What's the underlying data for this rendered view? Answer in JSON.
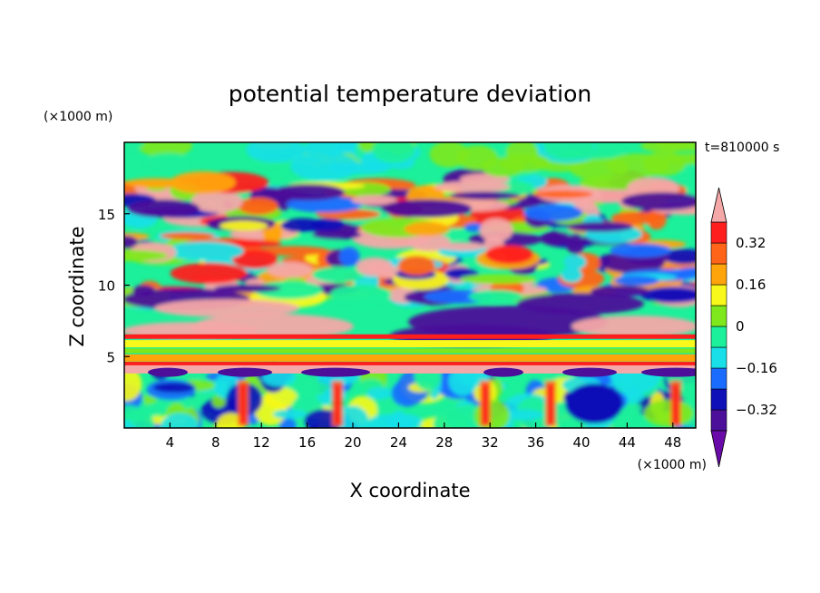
{
  "chart_data": {
    "type": "heatmap",
    "title": "potential temperature deviation",
    "xlabel": "X coordinate",
    "ylabel": "Z coordinate",
    "x_unit": "(×1000 m)",
    "z_unit": "(×1000 m)",
    "time_label": "t=810000 s",
    "xlim": [
      0,
      50
    ],
    "zlim": [
      0,
      20
    ],
    "x_ticks": [
      4,
      8,
      12,
      16,
      20,
      24,
      28,
      32,
      36,
      40,
      44,
      48
    ],
    "z_ticks": [
      5,
      10,
      15
    ],
    "colorbar": {
      "levels": [
        -0.4,
        -0.32,
        -0.24,
        -0.16,
        -0.08,
        0,
        0.08,
        0.16,
        0.24,
        0.32,
        0.4
      ],
      "tick_labels": [
        "0.32",
        "0.16",
        "0",
        "−0.16",
        "−0.32"
      ],
      "tick_values": [
        0.32,
        0.16,
        0,
        -0.16,
        -0.32
      ],
      "colors": [
        "#6a0aa8",
        "#4b0f9a",
        "#1010b8",
        "#1a6cff",
        "#19e0e8",
        "#1cf09a",
        "#7ee81c",
        "#f8f81a",
        "#ffa40a",
        "#ff6418",
        "#ff1e1e",
        "#f4a8a8"
      ],
      "extend": "both"
    }
  }
}
